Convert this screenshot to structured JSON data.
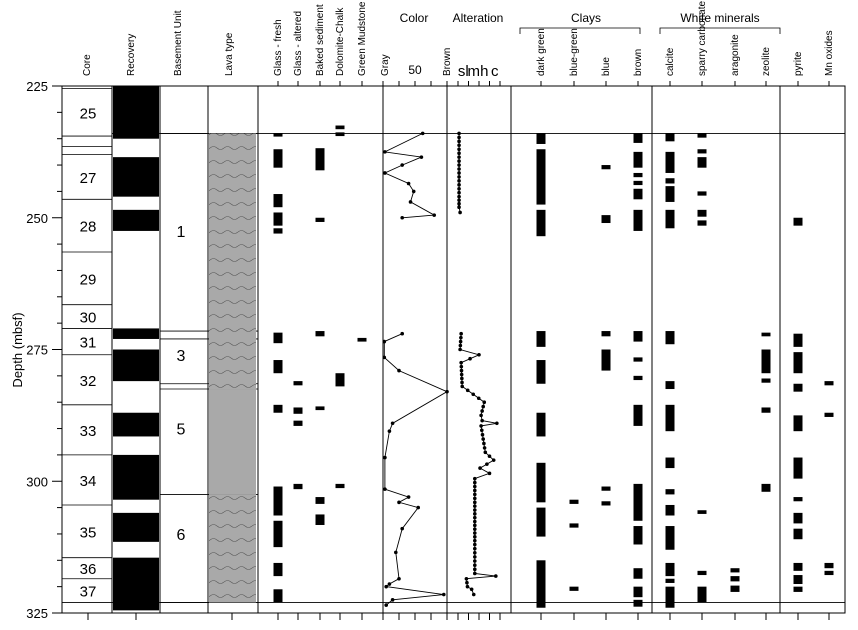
{
  "chart_data": {
    "type": "table",
    "title": "",
    "ylabel": "Depth (mbsf)",
    "ylim": [
      225,
      325
    ],
    "yticks": [
      225,
      250,
      275,
      300,
      325
    ],
    "headers": {
      "core": "Core",
      "recovery": "Recovery",
      "basement_unit": "Basement Unit",
      "lava_type": "Lava type",
      "color": "Color",
      "alteration": "Alteration",
      "clays": "Clays",
      "white_minerals": "White minerals"
    },
    "color_scale": {
      "left": "Gray",
      "mid": "50",
      "right": "Brown",
      "range": [
        0,
        100
      ]
    },
    "alteration_scale": {
      "labels": [
        "sl",
        "m",
        "h",
        "c"
      ],
      "range": [
        0,
        4
      ]
    },
    "cores": [
      {
        "label": "25",
        "top": 225.5,
        "bottom": 234.5
      },
      {
        "label": "",
        "top": 234.5,
        "bottom": 236.5
      },
      {
        "label": "",
        "top": 236.5,
        "bottom": 238.0
      },
      {
        "label": "27",
        "top": 238.0,
        "bottom": 246.5
      },
      {
        "label": "28",
        "top": 246.5,
        "bottom": 256.5
      },
      {
        "label": "29",
        "top": 256.5,
        "bottom": 266.5
      },
      {
        "label": "30",
        "top": 266.5,
        "bottom": 271.0
      },
      {
        "label": "31",
        "top": 271.0,
        "bottom": 276.0
      },
      {
        "label": "32",
        "top": 276.0,
        "bottom": 285.5
      },
      {
        "label": "33",
        "top": 285.5,
        "bottom": 295.0
      },
      {
        "label": "34",
        "top": 295.0,
        "bottom": 304.5
      },
      {
        "label": "35",
        "top": 304.5,
        "bottom": 314.5
      },
      {
        "label": "36",
        "top": 314.5,
        "bottom": 318.5
      },
      {
        "label": "37",
        "top": 318.5,
        "bottom": 323.0
      }
    ],
    "recovery": [
      [
        225.0,
        235.0
      ],
      [
        238.5,
        246.0
      ],
      [
        248.5,
        252.5
      ],
      [
        271.0,
        273.0
      ],
      [
        275.0,
        281.0
      ],
      [
        287.0,
        291.5
      ],
      [
        295.0,
        303.5
      ],
      [
        306.0,
        311.5
      ],
      [
        314.5,
        324.5
      ]
    ],
    "basement_units": [
      {
        "label": "1",
        "depth": 252.5,
        "top": 234.0,
        "bottom": 273.0
      },
      {
        "label": "3",
        "depth": 276.0,
        "top": 273.0,
        "bottom": 283.0
      },
      {
        "label": "5",
        "depth": 290.0,
        "top": 283.0,
        "bottom": 302.5
      },
      {
        "label": "6",
        "depth": 310.0,
        "top": 302.5,
        "bottom": 323.0
      }
    ],
    "unit_boundaries": [
      234.0,
      271.5,
      273.0,
      281.5,
      282.5,
      302.5,
      323.0
    ],
    "lava_intervals": [
      [
        234.0,
        282.5
      ],
      [
        282.5,
        302.5
      ],
      [
        302.5,
        323.0
      ]
    ],
    "color_curve": [
      {
        "depth": 234.0,
        "value": 62
      },
      {
        "depth": 237.5,
        "value": 3
      },
      {
        "depth": 238.5,
        "value": 60
      },
      {
        "depth": 240.0,
        "value": 30
      },
      {
        "depth": 241.5,
        "value": 3
      },
      {
        "depth": 243.5,
        "value": 40
      },
      {
        "depth": 245.0,
        "value": 48
      },
      {
        "depth": 247.0,
        "value": 43
      },
      {
        "depth": 249.5,
        "value": 80
      },
      {
        "depth": 250.0,
        "value": 30
      },
      {
        "depth": 272.0,
        "value": 30
      },
      {
        "depth": 273.5,
        "value": 2
      },
      {
        "depth": 276.5,
        "value": 2
      },
      {
        "depth": 279.0,
        "value": 25
      },
      {
        "depth": 283.0,
        "value": 100
      },
      {
        "depth": 289.0,
        "value": 15
      },
      {
        "depth": 290.5,
        "value": 10
      },
      {
        "depth": 295.5,
        "value": 3
      },
      {
        "depth": 301.5,
        "value": 3
      },
      {
        "depth": 303.0,
        "value": 40
      },
      {
        "depth": 304.0,
        "value": 25
      },
      {
        "depth": 305.0,
        "value": 55
      },
      {
        "depth": 309.0,
        "value": 30
      },
      {
        "depth": 313.5,
        "value": 20
      },
      {
        "depth": 318.5,
        "value": 25
      },
      {
        "depth": 319.5,
        "value": 10
      },
      {
        "depth": 320.0,
        "value": 5
      },
      {
        "depth": 321.5,
        "value": 95
      },
      {
        "depth": 322.5,
        "value": 15
      },
      {
        "depth": 323.5,
        "value": 5
      }
    ],
    "alteration_curve": [
      {
        "depth": 234.0,
        "value": 0.1
      },
      {
        "depth": 240.0,
        "value": 0.1
      },
      {
        "depth": 246.0,
        "value": 0.1
      },
      {
        "depth": 248.0,
        "value": 0.1
      },
      {
        "depth": 249.0,
        "value": 0.2
      },
      {
        "depth": 272.0,
        "value": 0.3
      },
      {
        "depth": 275.0,
        "value": 0.2
      },
      {
        "depth": 276.0,
        "value": 2.0
      },
      {
        "depth": 277.5,
        "value": 0.3
      },
      {
        "depth": 282.0,
        "value": 0.4
      },
      {
        "depth": 285.0,
        "value": 2.5
      },
      {
        "depth": 287.5,
        "value": 2.2
      },
      {
        "depth": 288.5,
        "value": 2.3
      },
      {
        "depth": 289.0,
        "value": 3.7
      },
      {
        "depth": 289.5,
        "value": 2.2
      },
      {
        "depth": 292.0,
        "value": 2.4
      },
      {
        "depth": 294.5,
        "value": 2.6
      },
      {
        "depth": 296.0,
        "value": 3.4
      },
      {
        "depth": 297.5,
        "value": 2.1
      },
      {
        "depth": 298.5,
        "value": 3.0
      },
      {
        "depth": 299.5,
        "value": 1.6
      },
      {
        "depth": 304.0,
        "value": 1.6
      },
      {
        "depth": 312.0,
        "value": 1.6
      },
      {
        "depth": 317.5,
        "value": 1.6
      },
      {
        "depth": 318.0,
        "value": 3.6
      },
      {
        "depth": 318.5,
        "value": 0.8
      },
      {
        "depth": 320.0,
        "value": 0.9
      },
      {
        "depth": 320.5,
        "value": 1.3
      },
      {
        "depth": 321.5,
        "value": 1.5
      }
    ],
    "minerals": [
      {
        "name": "Glass - fresh",
        "group": "",
        "intervals": [
          [
            234.0,
            234.6
          ],
          [
            237.0,
            240.5
          ],
          [
            245.5,
            248.0
          ],
          [
            249.0,
            251.5
          ],
          [
            252.0,
            253.0
          ],
          [
            271.8,
            273.8
          ],
          [
            277.0,
            279.5
          ],
          [
            285.5,
            287.0
          ],
          [
            301.0,
            306.5
          ],
          [
            307.5,
            312.5
          ],
          [
            315.5,
            318.0
          ],
          [
            320.5,
            323.0
          ]
        ]
      },
      {
        "name": "Glass - altered",
        "group": "",
        "intervals": [
          [
            281.0,
            281.8
          ],
          [
            286.0,
            287.2
          ],
          [
            288.5,
            289.5
          ],
          [
            300.5,
            301.5
          ]
        ]
      },
      {
        "name": "Baked sediment",
        "group": "",
        "intervals": [
          [
            236.8,
            241.0
          ],
          [
            250.0,
            250.8
          ],
          [
            271.5,
            272.5
          ],
          [
            285.8,
            286.5
          ],
          [
            303.0,
            304.3
          ],
          [
            306.3,
            308.3
          ]
        ]
      },
      {
        "name": "Dolomite-Chalk",
        "group": "",
        "intervals": [
          [
            232.5,
            233.2
          ],
          [
            233.8,
            234.5
          ],
          [
            279.5,
            282.0
          ],
          [
            300.5,
            301.3
          ]
        ]
      },
      {
        "name": "Green Mudstone",
        "group": "",
        "intervals": [
          [
            272.8,
            273.5
          ]
        ]
      },
      {
        "name": "dark green",
        "group": "Clays",
        "intervals": [
          [
            234.0,
            236.0
          ],
          [
            237.0,
            247.5
          ],
          [
            248.5,
            253.5
          ],
          [
            271.5,
            274.5
          ],
          [
            277.0,
            281.5
          ],
          [
            287.0,
            291.5
          ],
          [
            296.5,
            304.0
          ],
          [
            305.0,
            310.5
          ],
          [
            315.0,
            324.0
          ]
        ]
      },
      {
        "name": "blue-green",
        "group": "Clays",
        "intervals": [
          [
            303.5,
            304.3
          ],
          [
            308.0,
            308.8
          ],
          [
            320.0,
            320.8
          ]
        ]
      },
      {
        "name": "blue",
        "group": "Clays",
        "intervals": [
          [
            240.0,
            240.8
          ],
          [
            249.5,
            251.0
          ],
          [
            271.5,
            272.5
          ],
          [
            275.0,
            279.0
          ],
          [
            301.0,
            301.8
          ],
          [
            303.8,
            304.6
          ]
        ]
      },
      {
        "name": "brown",
        "group": "Clays",
        "intervals": [
          [
            234.0,
            235.8
          ],
          [
            237.5,
            240.5
          ],
          [
            241.5,
            242.3
          ],
          [
            243.0,
            243.8
          ],
          [
            244.5,
            246.5
          ],
          [
            248.5,
            252.5
          ],
          [
            271.5,
            273.5
          ],
          [
            276.5,
            277.3
          ],
          [
            280.0,
            280.8
          ],
          [
            285.5,
            289.5
          ],
          [
            300.5,
            307.5
          ],
          [
            308.5,
            312.0
          ],
          [
            316.5,
            318.5
          ],
          [
            320.0,
            322.0
          ],
          [
            322.5,
            323.8
          ]
        ]
      },
      {
        "name": "calcite",
        "group": "White minerals",
        "intervals": [
          [
            234.0,
            235.5
          ],
          [
            237.5,
            241.5
          ],
          [
            242.5,
            243.5
          ],
          [
            244.0,
            247.0
          ],
          [
            248.5,
            252.0
          ],
          [
            271.5,
            274.0
          ],
          [
            281.0,
            282.5
          ],
          [
            285.5,
            290.5
          ],
          [
            295.5,
            297.5
          ],
          [
            301.5,
            302.5
          ],
          [
            304.5,
            306.5
          ],
          [
            308.5,
            313.0
          ],
          [
            315.5,
            318.0
          ],
          [
            318.5,
            319.3
          ],
          [
            320.0,
            324.0
          ]
        ]
      },
      {
        "name": "sparry carbonate",
        "group": "White minerals",
        "intervals": [
          [
            234.0,
            234.8
          ],
          [
            237.0,
            237.8
          ],
          [
            238.5,
            240.5
          ],
          [
            245.0,
            245.8
          ],
          [
            248.5,
            249.8
          ],
          [
            250.5,
            251.5
          ],
          [
            305.5,
            306.2
          ],
          [
            317.0,
            317.8
          ],
          [
            320.0,
            323.0
          ]
        ]
      },
      {
        "name": "aragonite",
        "group": "White minerals",
        "intervals": [
          [
            316.5,
            317.3
          ],
          [
            318.0,
            319.0
          ],
          [
            319.8,
            321.0
          ]
        ]
      },
      {
        "name": "zeolite",
        "group": "White minerals",
        "intervals": [
          [
            271.8,
            272.5
          ],
          [
            275.0,
            279.5
          ],
          [
            280.5,
            281.3
          ],
          [
            286.0,
            287.0
          ],
          [
            300.5,
            302.0
          ]
        ]
      },
      {
        "name": "pyrite",
        "group": "",
        "intervals": [
          [
            250.0,
            251.5
          ],
          [
            272.0,
            274.5
          ],
          [
            275.5,
            279.5
          ],
          [
            281.5,
            283.0
          ],
          [
            287.5,
            290.5
          ],
          [
            295.5,
            299.5
          ],
          [
            303.0,
            303.8
          ],
          [
            306.0,
            308.0
          ],
          [
            309.0,
            311.0
          ],
          [
            315.5,
            317.0
          ],
          [
            317.8,
            319.5
          ],
          [
            320.0,
            321.0
          ]
        ]
      },
      {
        "name": "Mn oxides",
        "group": "",
        "intervals": [
          [
            281.0,
            281.8
          ],
          [
            287.0,
            287.8
          ],
          [
            315.5,
            316.5
          ],
          [
            317.0,
            317.8
          ]
        ]
      }
    ]
  }
}
